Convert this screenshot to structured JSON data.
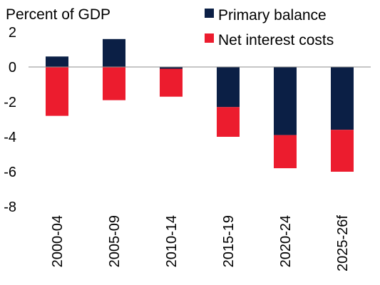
{
  "chart_data": {
    "type": "bar",
    "stacked": true,
    "ylabel": "Percent of GDP",
    "ylim": [
      -8,
      2
    ],
    "yticks": [
      2,
      0,
      -2,
      -4,
      -6,
      -8
    ],
    "grid": false,
    "legend_position": "top-right",
    "categories": [
      "2000-04",
      "2005-09",
      "2010-14",
      "2015-19",
      "2020-24",
      "2025-26f"
    ],
    "series": [
      {
        "name": "Primary balance",
        "color": "#0b1f45",
        "values": [
          0.6,
          1.6,
          -0.1,
          -2.3,
          -3.9,
          -3.6
        ]
      },
      {
        "name": "Net interest costs",
        "color": "#ec1c2e",
        "values": [
          -2.8,
          -1.9,
          -1.6,
          -1.7,
          -1.9,
          -2.4
        ]
      }
    ]
  }
}
